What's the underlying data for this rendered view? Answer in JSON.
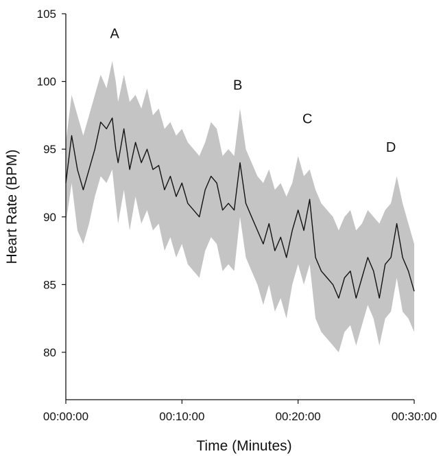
{
  "chart_data": {
    "type": "area",
    "title": "",
    "xlabel": "Time (Minutes)",
    "ylabel": "Heart Rate (BPM)",
    "x_unit": "minutes",
    "xlim": [
      0,
      30
    ],
    "ylim": [
      76.5,
      105
    ],
    "x_ticks": [
      {
        "value": 0,
        "label": "00:00:00"
      },
      {
        "value": 10,
        "label": "00:10:00"
      },
      {
        "value": 20,
        "label": "00:20:00"
      },
      {
        "value": 30,
        "label": "00:30:00"
      }
    ],
    "y_ticks": [
      80,
      85,
      90,
      95,
      100,
      105
    ],
    "grid": false,
    "legend": "none",
    "colors": {
      "line": "#111111",
      "band": "#c4c4c4",
      "axis": "#111111"
    },
    "series": [
      {
        "x": [
          0.0,
          0.5,
          1.0,
          1.5,
          2.0,
          2.5,
          3.0,
          3.5,
          4.0,
          4.3,
          4.5,
          5.0,
          5.5,
          6.0,
          6.5,
          7.0,
          7.5,
          8.0,
          8.5,
          9.0,
          9.5,
          10.0,
          10.5,
          11.0,
          11.5,
          12.0,
          12.5,
          13.0,
          13.5,
          14.0,
          14.5,
          15.0,
          15.5,
          16.0,
          16.5,
          17.0,
          17.5,
          18.0,
          18.5,
          19.0,
          19.5,
          20.0,
          20.5,
          21.0,
          21.5,
          22.0,
          22.5,
          23.0,
          23.5,
          24.0,
          24.5,
          25.0,
          25.5,
          26.0,
          26.5,
          27.0,
          27.5,
          28.0,
          28.5,
          29.0,
          29.5,
          30.0
        ],
        "y": [
          92.5,
          96.0,
          93.5,
          92.0,
          93.5,
          95.0,
          97.0,
          96.5,
          97.3,
          95.0,
          94.0,
          96.5,
          93.5,
          95.5,
          94.0,
          95.0,
          93.5,
          93.8,
          92.0,
          93.0,
          91.5,
          92.5,
          91.0,
          90.5,
          90.0,
          92.0,
          93.0,
          92.5,
          90.5,
          91.0,
          90.5,
          94.0,
          91.0,
          90.0,
          89.0,
          88.0,
          89.5,
          87.5,
          88.5,
          87.0,
          89.0,
          90.5,
          89.0,
          91.3,
          87.0,
          86.0,
          85.5,
          85.0,
          84.0,
          85.5,
          86.0,
          84.0,
          85.5,
          87.0,
          86.0,
          84.0,
          86.5,
          87.0,
          89.5,
          87.0,
          86.0,
          84.5
        ],
        "upper": [
          95.5,
          99.0,
          97.5,
          96.0,
          97.5,
          99.0,
          100.5,
          99.5,
          101.5,
          100.0,
          98.5,
          100.5,
          98.5,
          99.0,
          98.0,
          99.5,
          97.5,
          98.0,
          96.5,
          97.0,
          96.0,
          96.5,
          95.5,
          95.0,
          94.5,
          95.5,
          97.0,
          96.5,
          94.5,
          95.0,
          94.5,
          98.0,
          95.0,
          94.0,
          93.0,
          92.5,
          93.5,
          92.0,
          92.5,
          91.5,
          92.5,
          94.5,
          93.0,
          93.5,
          92.0,
          91.0,
          90.5,
          90.0,
          89.0,
          90.0,
          90.5,
          89.0,
          89.5,
          90.5,
          90.0,
          89.5,
          90.5,
          91.0,
          93.0,
          91.0,
          89.5,
          88.0
        ],
        "lower": [
          89.5,
          92.5,
          89.0,
          88.0,
          89.5,
          91.5,
          93.0,
          92.5,
          93.5,
          91.0,
          89.5,
          92.0,
          89.0,
          91.5,
          89.5,
          90.5,
          89.0,
          89.5,
          87.5,
          88.5,
          87.0,
          88.0,
          86.5,
          86.0,
          85.5,
          87.5,
          88.5,
          88.0,
          86.0,
          86.5,
          86.0,
          90.0,
          87.0,
          86.0,
          85.0,
          83.5,
          85.0,
          83.0,
          84.0,
          82.5,
          85.0,
          86.5,
          85.0,
          86.5,
          82.5,
          81.5,
          81.0,
          80.5,
          80.0,
          81.5,
          82.0,
          80.5,
          82.0,
          83.5,
          82.5,
          80.5,
          82.5,
          83.0,
          85.5,
          83.0,
          82.5,
          81.5
        ]
      }
    ],
    "annotations": [
      {
        "label": "A",
        "x": 4.2,
        "y": 103.2
      },
      {
        "label": "B",
        "x": 14.8,
        "y": 99.4
      },
      {
        "label": "C",
        "x": 20.8,
        "y": 96.9
      },
      {
        "label": "D",
        "x": 28.0,
        "y": 94.8
      }
    ]
  }
}
